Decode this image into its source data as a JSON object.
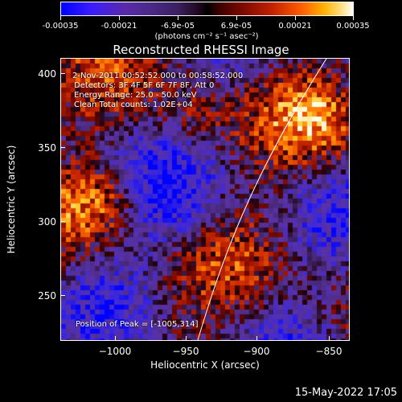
{
  "colorbar": {
    "tick_labels": [
      "-0.00035",
      "-0.00021",
      "-6.9e-05",
      "6.9e-05",
      "0.00021",
      "0.00035"
    ],
    "units": "(photons cm⁻² s⁻¹ asec⁻²)"
  },
  "plot": {
    "title": "Reconstructed RHESSI Image",
    "xlabel": "Heliocentric X (arcsec)",
    "ylabel": "Heliocentric Y (arcsec)",
    "x_ticks": [
      "−1000",
      "−950",
      "−900",
      "−850"
    ],
    "y_ticks": [
      "400",
      "350",
      "300",
      "250"
    ],
    "xlim": [
      -1033,
      -835
    ],
    "ylim": [
      216,
      410
    ]
  },
  "annotations": {
    "time_range": "2-Nov-2011 00:52:52.000 to 00:58:52.000",
    "detectors": "Detectors: 3F 4F 5F 6F 7F 8F, Att 0",
    "energy": "Energy Range: 25.0 - 50.0 keV",
    "method": "Clean     Total counts: 1.02E+04",
    "peak": "Position of Peak = [-1005,314]"
  },
  "footer": {
    "timestamp": "15-May-2022 17:05"
  },
  "colors": {
    "background": "#000000",
    "limb_line": "#ffffff"
  }
}
